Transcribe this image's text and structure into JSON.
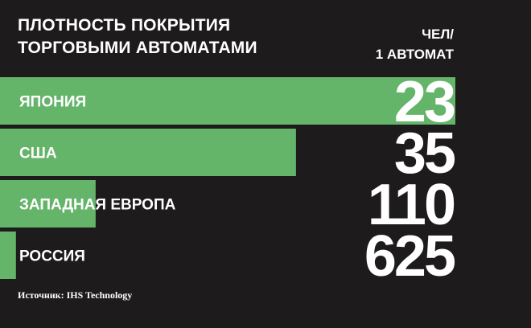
{
  "colors": {
    "background": "#1d1b1c",
    "bar": "#64b46a",
    "text": "#ffffff"
  },
  "chart_data": {
    "type": "bar",
    "orientation": "horizontal",
    "title_lines": [
      "ПЛОТНОСТЬ ПОКРЫТИЯ",
      "ТОРГОВЫМИ АВТОМАТАМИ"
    ],
    "unit_lines": [
      "ЧЕЛ/",
      "1 АВТОМАТ"
    ],
    "categories": [
      "ЯПОНИЯ",
      "США",
      "ЗАПАДНАЯ ЕВРОПА",
      "РОССИЯ"
    ],
    "values": [
      23,
      35,
      110,
      625
    ],
    "value_labels": [
      "23",
      "35",
      "110",
      "625"
    ],
    "bar_length_fraction": [
      1.0,
      0.65,
      0.21,
      0.035
    ],
    "source": "Источник: IHS Technology"
  }
}
